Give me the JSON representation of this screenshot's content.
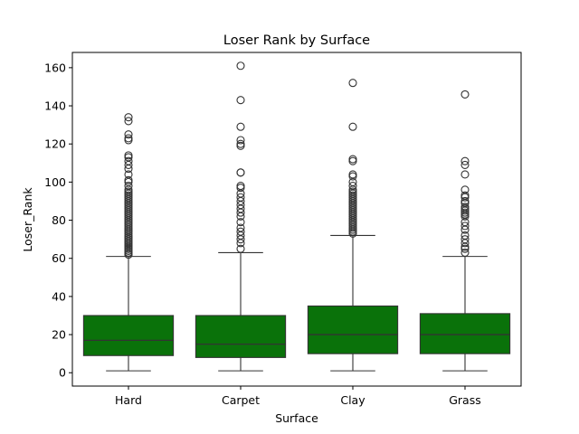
{
  "chart_data": {
    "type": "box",
    "title": "Loser Rank by Surface",
    "xlabel": "Surface",
    "ylabel": "Loser_Rank",
    "categories": [
      "Hard",
      "Carpet",
      "Clay",
      "Grass"
    ],
    "ylim": [
      -7,
      168
    ],
    "yticks": [
      0,
      20,
      40,
      60,
      80,
      100,
      120,
      140,
      160
    ],
    "grid": false,
    "box_color": "#0a720a",
    "edge_color": "#333333",
    "boxes": [
      {
        "name": "Hard",
        "whisker_low": 1,
        "q1": 9,
        "median": 17,
        "q3": 30,
        "whisker_high": 61,
        "outliers": [
          62,
          62,
          63,
          63,
          64,
          64,
          65,
          65,
          66,
          66,
          67,
          67,
          68,
          68,
          69,
          69,
          70,
          71,
          71,
          72,
          73,
          74,
          75,
          76,
          77,
          78,
          79,
          80,
          81,
          82,
          83,
          84,
          85,
          86,
          87,
          88,
          89,
          90,
          91,
          92,
          93,
          94,
          95,
          96,
          98,
          100,
          101,
          104,
          107,
          109,
          111,
          113,
          114,
          122,
          123,
          125,
          132,
          134
        ]
      },
      {
        "name": "Carpet",
        "whisker_low": 1,
        "q1": 8,
        "median": 15,
        "q3": 30,
        "whisker_high": 63,
        "outliers": [
          65,
          68,
          70,
          72,
          74,
          76,
          79,
          82,
          84,
          86,
          88,
          90,
          92,
          94,
          97,
          98,
          105,
          105,
          119,
          120,
          122,
          129,
          143,
          161
        ]
      },
      {
        "name": "Clay",
        "whisker_low": 1,
        "q1": 10,
        "median": 20,
        "q3": 35,
        "whisker_high": 72,
        "outliers": [
          73,
          74,
          75,
          76,
          77,
          78,
          79,
          80,
          81,
          82,
          83,
          84,
          85,
          86,
          87,
          88,
          89,
          90,
          91,
          92,
          93,
          94,
          95,
          96,
          98,
          100,
          103,
          104,
          111,
          112,
          129,
          152
        ]
      },
      {
        "name": "Grass",
        "whisker_low": 1,
        "q1": 10,
        "median": 20,
        "q3": 31,
        "whisker_high": 61,
        "outliers": [
          63,
          65,
          66,
          68,
          70,
          72,
          75,
          77,
          79,
          82,
          83,
          84,
          85,
          86,
          87,
          89,
          90,
          92,
          93,
          96,
          104,
          109,
          111,
          146
        ]
      }
    ]
  }
}
